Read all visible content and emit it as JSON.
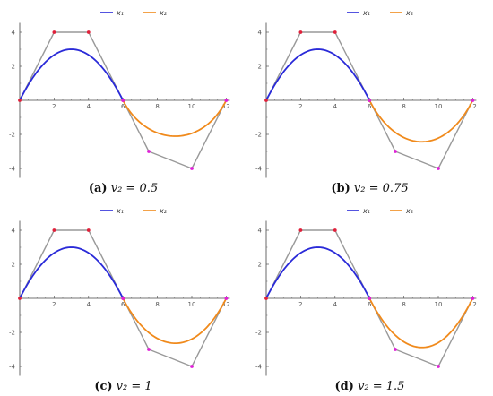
{
  "chart_data": [
    {
      "type": "line",
      "caption": {
        "label": "(a)",
        "text": "v₂ = 0.5"
      },
      "weight": 0.5,
      "xlim": [
        0,
        12
      ],
      "ylim": [
        -4.5,
        4.5
      ],
      "xticks": [
        "2",
        "4",
        "6",
        "8",
        "10",
        "12"
      ],
      "yticks": [
        "4",
        "2",
        "-2",
        "-4"
      ],
      "legend": {
        "placement": "top-center",
        "entries": [
          "x₁",
          "x₂"
        ]
      },
      "series": [
        {
          "name": "x₁",
          "color": "#2a2ad8",
          "control_points": [
            [
              0,
              0
            ],
            [
              2,
              4
            ],
            [
              4,
              4
            ],
            [
              6,
              0
            ]
          ]
        },
        {
          "name": "x₂",
          "color": "#f08a1c",
          "control_points": [
            [
              6,
              0
            ],
            [
              7.5,
              -3
            ],
            [
              10,
              -4
            ],
            [
              12,
              0
            ]
          ]
        }
      ]
    },
    {
      "type": "line",
      "caption": {
        "label": "(b)",
        "text": "v₂ = 0.75"
      },
      "weight": 0.75,
      "xlim": [
        0,
        12
      ],
      "ylim": [
        -4.5,
        4.5
      ],
      "xticks": [
        "2",
        "4",
        "6",
        "8",
        "10",
        "12"
      ],
      "yticks": [
        "4",
        "2",
        "-2",
        "-4"
      ],
      "legend": {
        "placement": "top-center",
        "entries": [
          "x₁",
          "x₂"
        ]
      },
      "series": [
        {
          "name": "x₁",
          "color": "#2a2ad8",
          "control_points": [
            [
              0,
              0
            ],
            [
              2,
              4
            ],
            [
              4,
              4
            ],
            [
              6,
              0
            ]
          ]
        },
        {
          "name": "x₂",
          "color": "#f08a1c",
          "control_points": [
            [
              6,
              0
            ],
            [
              7.5,
              -3
            ],
            [
              10,
              -4
            ],
            [
              12,
              0
            ]
          ]
        }
      ]
    },
    {
      "type": "line",
      "caption": {
        "label": "(c)",
        "text": "v₂ = 1"
      },
      "weight": 1,
      "xlim": [
        0,
        12
      ],
      "ylim": [
        -4.5,
        4.5
      ],
      "xticks": [
        "2",
        "4",
        "6",
        "8",
        "10",
        "12"
      ],
      "yticks": [
        "4",
        "2",
        "-2",
        "-4"
      ],
      "legend": {
        "placement": "top-center",
        "entries": [
          "x₁",
          "x₂"
        ]
      },
      "series": [
        {
          "name": "x₁",
          "color": "#2a2ad8",
          "control_points": [
            [
              0,
              0
            ],
            [
              2,
              4
            ],
            [
              4,
              4
            ],
            [
              6,
              0
            ]
          ]
        },
        {
          "name": "x₂",
          "color": "#f08a1c",
          "control_points": [
            [
              6,
              0
            ],
            [
              7.5,
              -3
            ],
            [
              10,
              -4
            ],
            [
              12,
              0
            ]
          ]
        }
      ]
    },
    {
      "type": "line",
      "caption": {
        "label": "(d)",
        "text": "v₂ = 1.5"
      },
      "weight": 1.5,
      "xlim": [
        0,
        12
      ],
      "ylim": [
        -4.5,
        4.5
      ],
      "xticks": [
        "2",
        "4",
        "6",
        "8",
        "10",
        "12"
      ],
      "yticks": [
        "4",
        "2",
        "-2",
        "-4"
      ],
      "legend": {
        "placement": "top-center",
        "entries": [
          "x₁",
          "x₂"
        ]
      },
      "series": [
        {
          "name": "x₁",
          "color": "#2a2ad8",
          "control_points": [
            [
              0,
              0
            ],
            [
              2,
              4
            ],
            [
              4,
              4
            ],
            [
              6,
              0
            ]
          ]
        },
        {
          "name": "x₂",
          "color": "#f08a1c",
          "control_points": [
            [
              6,
              0
            ],
            [
              7.5,
              -3
            ],
            [
              10,
              -4
            ],
            [
              12,
              0
            ]
          ]
        }
      ]
    }
  ],
  "colors": {
    "control_polygon": "#999999",
    "control_point_1": "#e0203a",
    "control_point_2": "#e020d8",
    "axis": "#444444"
  }
}
